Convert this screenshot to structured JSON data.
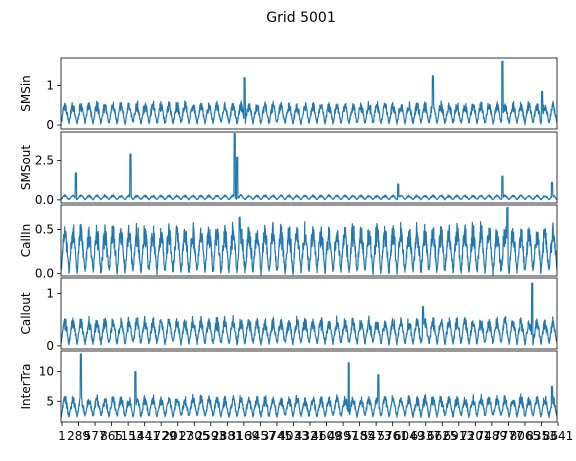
{
  "figure": {
    "title": "Grid 5001"
  },
  "chart_data": {
    "title": "Grid 5001",
    "type": "line",
    "n_points": 2000,
    "x_tick_labels": [
      "1",
      "289",
      "577",
      "865",
      "1153",
      "1441",
      "1729",
      "2017",
      "2305",
      "2593",
      "2881",
      "3169",
      "3457",
      "3745",
      "4033",
      "4321",
      "4609",
      "4897",
      "5185",
      "5473",
      "5761",
      "6049",
      "6337",
      "6625",
      "6913",
      "7201",
      "7489",
      "7777",
      "8065",
      "8353",
      "8641"
    ],
    "grid": false,
    "panels": [
      {
        "ylabel": "SMSin",
        "ylim": [
          -0.1,
          1.7
        ],
        "yticks": [
          0,
          1
        ],
        "ytick_labels": [
          "0",
          "1"
        ],
        "base": 0.05,
        "amp": 0.55,
        "spikes": [
          [
            0.37,
            1.2
          ],
          [
            0.75,
            1.25
          ],
          [
            0.89,
            1.62
          ],
          [
            0.97,
            0.85
          ]
        ]
      },
      {
        "ylabel": "SMSout",
        "ylim": [
          -0.2,
          4.3
        ],
        "yticks": [
          0,
          2.5
        ],
        "ytick_labels": [
          "0.0",
          "2.5"
        ],
        "base": 0.02,
        "amp": 0.3,
        "spikes": [
          [
            0.03,
            1.7
          ],
          [
            0.14,
            2.9
          ],
          [
            0.35,
            4.2
          ],
          [
            0.355,
            2.7
          ],
          [
            0.68,
            1.0
          ],
          [
            0.89,
            1.5
          ],
          [
            0.99,
            1.1
          ]
        ]
      },
      {
        "ylabel": "CallIn",
        "ylim": [
          -0.03,
          0.78
        ],
        "yticks": [
          0.0,
          0.5
        ],
        "ytick_labels": [
          "0.0",
          "0.5"
        ],
        "base": 0.02,
        "amp": 0.55,
        "spikes": [
          [
            0.36,
            0.64
          ],
          [
            0.9,
            0.75
          ]
        ]
      },
      {
        "ylabel": "Callout",
        "ylim": [
          -0.06,
          1.3
        ],
        "yticks": [
          0,
          1
        ],
        "ytick_labels": [
          "0",
          "1"
        ],
        "base": 0.05,
        "amp": 0.5,
        "spikes": [
          [
            0.95,
            1.2
          ],
          [
            0.73,
            0.75
          ]
        ]
      },
      {
        "ylabel": "InterTra",
        "ylim": [
          1.5,
          13.5
        ],
        "yticks": [
          5,
          10
        ],
        "ytick_labels": [
          "5",
          "10"
        ],
        "base": 2.5,
        "amp": 3.5,
        "spikes": [
          [
            0.04,
            13.0
          ],
          [
            0.15,
            10.0
          ],
          [
            0.58,
            11.5
          ],
          [
            0.64,
            9.5
          ],
          [
            0.99,
            7.5
          ]
        ]
      }
    ]
  }
}
